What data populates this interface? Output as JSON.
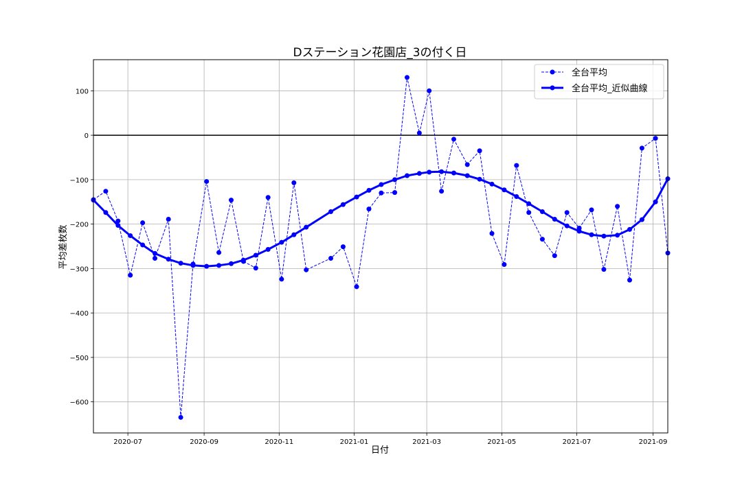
{
  "chart_data": {
    "type": "line",
    "title": "Dステーション花園店_3の付く日",
    "xlabel": "日付",
    "ylabel": "平均差枚数",
    "xlim": [
      "2020-06-03",
      "2021-09-13"
    ],
    "ylim": [
      -670,
      170
    ],
    "x_tick_labels": [
      "2020-07",
      "2020-09",
      "2020-11",
      "2021-01",
      "2021-03",
      "2021-05",
      "2021-07",
      "2021-09"
    ],
    "x_ticks": [
      "2020-07-01",
      "2020-09-01",
      "2020-11-01",
      "2021-01-01",
      "2021-03-01",
      "2021-05-01",
      "2021-07-01",
      "2021-09-01"
    ],
    "y_ticks": [
      100,
      0,
      -100,
      -200,
      -300,
      -400,
      -500,
      -600
    ],
    "y_tick_labels": [
      "100",
      "0",
      "−100",
      "−200",
      "−300",
      "−400",
      "−500",
      "−600"
    ],
    "reference_line_y": 0,
    "grid": true,
    "legend_position": "upper right",
    "series": [
      {
        "name": "全台平均",
        "style": "dashed",
        "color": "#0000ff",
        "x": [
          "2020-06-03",
          "2020-06-13",
          "2020-06-23",
          "2020-07-03",
          "2020-07-13",
          "2020-07-23",
          "2020-08-03",
          "2020-08-13",
          "2020-08-23",
          "2020-09-03",
          "2020-09-13",
          "2020-09-23",
          "2020-10-03",
          "2020-10-13",
          "2020-10-23",
          "2020-11-03",
          "2020-11-13",
          "2020-11-23",
          "2020-12-13",
          "2020-12-23",
          "2021-01-03",
          "2021-01-13",
          "2021-01-23",
          "2021-02-03",
          "2021-02-13",
          "2021-02-23",
          "2021-03-03",
          "2021-03-13",
          "2021-03-23",
          "2021-04-03",
          "2021-04-13",
          "2021-04-23",
          "2021-05-03",
          "2021-05-13",
          "2021-05-23",
          "2021-06-03",
          "2021-06-13",
          "2021-06-23",
          "2021-07-03",
          "2021-07-13",
          "2021-07-23",
          "2021-08-03",
          "2021-08-13",
          "2021-08-23",
          "2021-09-03",
          "2021-09-13"
        ],
        "values": [
          -145,
          -126,
          -193,
          -315,
          -197,
          -277,
          -189,
          -635,
          -290,
          -104,
          -264,
          -146,
          -284,
          -299,
          -140,
          -324,
          -107,
          -303,
          -277,
          -251,
          -341,
          -166,
          -130,
          -129,
          130,
          5,
          100,
          -126,
          -9,
          -66,
          -35,
          -221,
          -291,
          -68,
          -174,
          -234,
          -271,
          -174,
          -209,
          -168,
          -302,
          -160,
          -326,
          -29,
          -7,
          -265
        ]
      },
      {
        "name": "全台平均_近似曲線",
        "style": "solid",
        "color": "#0000ff",
        "x": [
          "2020-06-03",
          "2020-06-13",
          "2020-06-23",
          "2020-07-03",
          "2020-07-13",
          "2020-07-23",
          "2020-08-03",
          "2020-08-13",
          "2020-08-23",
          "2020-09-03",
          "2020-09-13",
          "2020-09-23",
          "2020-10-03",
          "2020-10-13",
          "2020-10-23",
          "2020-11-03",
          "2020-11-13",
          "2020-11-23",
          "2020-12-13",
          "2020-12-23",
          "2021-01-03",
          "2021-01-13",
          "2021-01-23",
          "2021-02-03",
          "2021-02-13",
          "2021-02-23",
          "2021-03-03",
          "2021-03-13",
          "2021-03-23",
          "2021-04-03",
          "2021-04-13",
          "2021-04-23",
          "2021-05-03",
          "2021-05-13",
          "2021-05-23",
          "2021-06-03",
          "2021-06-13",
          "2021-06-23",
          "2021-07-03",
          "2021-07-13",
          "2021-07-23",
          "2021-08-03",
          "2021-08-13",
          "2021-08-23",
          "2021-09-03",
          "2021-09-13"
        ],
        "values": [
          -146,
          -174,
          -203,
          -226,
          -247,
          -266,
          -279,
          -288,
          -293,
          -295,
          -293,
          -289,
          -281,
          -270,
          -257,
          -241,
          -224,
          -207,
          -172,
          -156,
          -139,
          -124,
          -111,
          -100,
          -91,
          -86,
          -83,
          -82,
          -85,
          -91,
          -99,
          -110,
          -123,
          -138,
          -154,
          -172,
          -189,
          -204,
          -216,
          -224,
          -227,
          -225,
          -212,
          -190,
          -150,
          -98
        ]
      }
    ]
  }
}
